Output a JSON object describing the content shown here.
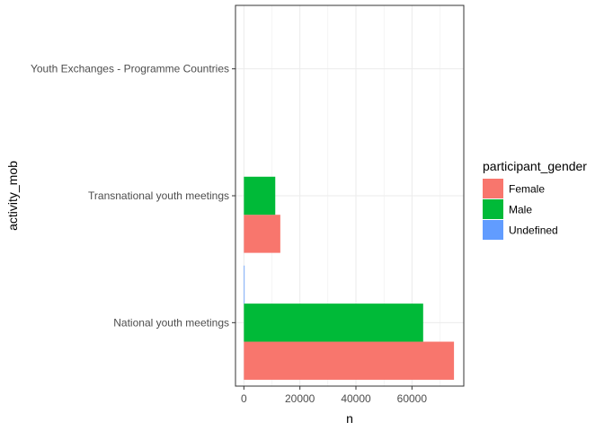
{
  "chart_data": {
    "type": "bar",
    "orientation": "horizontal",
    "position": "dodge",
    "categories": [
      "National youth meetings",
      "Transnational youth meetings",
      "Youth Exchanges - Programme Countries"
    ],
    "series": [
      {
        "name": "Female",
        "color": "#F8766D",
        "values": [
          75000,
          13000,
          0
        ]
      },
      {
        "name": "Male",
        "color": "#00BA38",
        "values": [
          64000,
          11200,
          0
        ]
      },
      {
        "name": "Undefined",
        "color": "#619CFF",
        "values": [
          200,
          0,
          0
        ]
      }
    ],
    "xlabel": "n",
    "ylabel": "activity_mob",
    "xlim": [
      -3000,
      78500
    ],
    "xticks": [
      0,
      20000,
      40000,
      60000
    ],
    "xtick_labels": [
      "0",
      "20000",
      "40000",
      "60000"
    ],
    "grid": true,
    "legend": {
      "title": "participant_gender",
      "placement": "right",
      "entries": [
        "Female",
        "Male",
        "Undefined"
      ]
    }
  }
}
